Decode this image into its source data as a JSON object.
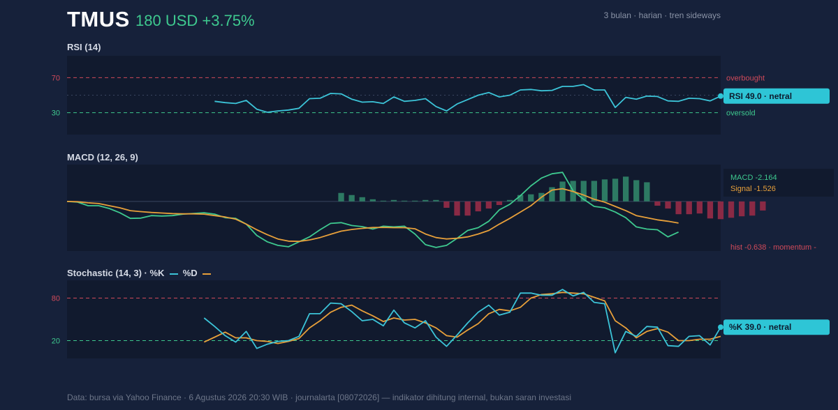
{
  "header": {
    "ticker": "TMUS",
    "price_change": "180 USD +3.75%",
    "meta": "3 bulan · harian · tren sideways"
  },
  "footer": "Data: bursa via Yahoo Finance · 6 Agustus 2026 20:30 WIB · journalarta [08072026] — indikator dihitung internal, bukan saran investasi",
  "colors": {
    "background": "#16213a",
    "panel": "#111a2e",
    "rsi_line": "#3cc4d8",
    "macd_line": "#3ec98f",
    "signal_line": "#e8a03a",
    "hist_pos": "#2d7a63",
    "hist_neg": "#8a2a45",
    "overbought": "#d04a5a",
    "oversold": "#3ec98f",
    "badge": "#2ec5d6"
  },
  "chart_data": [
    {
      "type": "line",
      "title": "RSI (14)",
      "ylim": [
        5,
        95
      ],
      "y_ticks": [
        30,
        70
      ],
      "overbought": {
        "value": 70,
        "label": "overbought"
      },
      "oversold": {
        "value": 30,
        "label": "oversold"
      },
      "midline": 50,
      "start_index": 14,
      "series": [
        {
          "values": [
            43,
            41.5,
            40.5,
            44,
            34,
            30.5,
            32,
            33,
            35,
            46,
            46.5,
            52,
            51.5,
            45.5,
            42,
            42.5,
            40.5,
            48,
            43,
            44,
            46,
            37,
            32,
            40,
            45,
            50,
            53,
            48,
            50,
            56,
            56.5,
            55,
            55.5,
            60,
            60,
            62,
            56,
            56,
            36,
            47.5,
            45.5,
            49,
            48.5,
            43.5,
            43,
            46.5,
            46,
            43.5,
            49
          ]
        }
      ],
      "badge": "RSI 49.0 · netral"
    },
    {
      "type": "line",
      "title": "MACD (12, 26, 9)",
      "ylim": [
        -3.5,
        2.6
      ],
      "zero_line": 0,
      "series": [
        {
          "name": "MACD",
          "values": [
            0.0,
            -0.05,
            -0.3,
            -0.3,
            -0.5,
            -0.8,
            -1.2,
            -1.18,
            -1.0,
            -1.03,
            -1.0,
            -0.9,
            -0.85,
            -0.8,
            -0.9,
            -1.15,
            -1.2,
            -1.6,
            -2.4,
            -2.85,
            -3.1,
            -3.2,
            -2.85,
            -2.5,
            -2.0,
            -1.55,
            -1.5,
            -1.7,
            -1.78,
            -1.95,
            -1.75,
            -1.8,
            -1.75,
            -2.3,
            -3.05,
            -3.25,
            -3.1,
            -2.6,
            -2.05,
            -1.85,
            -1.4,
            -0.6,
            -0.2,
            0.4,
            1.1,
            1.65,
            1.95,
            2.05,
            0.75,
            0.15,
            -0.35,
            -0.45,
            -0.75,
            -1.15,
            -1.8,
            -1.95,
            -2.0,
            -2.5,
            -2.164
          ]
        },
        {
          "name": "Signal",
          "values": [
            0.0,
            -0.02,
            -0.1,
            -0.15,
            -0.3,
            -0.45,
            -0.65,
            -0.72,
            -0.78,
            -0.82,
            -0.86,
            -0.88,
            -0.88,
            -0.9,
            -1.0,
            -1.1,
            -1.25,
            -1.6,
            -2.0,
            -2.35,
            -2.65,
            -2.8,
            -2.82,
            -2.72,
            -2.55,
            -2.32,
            -2.1,
            -1.98,
            -1.9,
            -1.84,
            -1.83,
            -1.85,
            -1.85,
            -1.93,
            -2.3,
            -2.55,
            -2.65,
            -2.6,
            -2.5,
            -2.3,
            -2.05,
            -1.6,
            -1.2,
            -0.75,
            -0.3,
            0.3,
            0.8,
            0.9,
            0.7,
            0.45,
            0.15,
            -0.05,
            -0.35,
            -0.65,
            -1.0,
            -1.15,
            -1.3,
            -1.4,
            -1.526
          ]
        }
      ],
      "histogram_start": 26,
      "histogram": [
        0.6,
        0.45,
        0.3,
        0.15,
        0.05,
        0.1,
        0.05,
        0.05,
        0.1,
        0.1,
        -0.45,
        -1.0,
        -1.0,
        -0.7,
        -0.5,
        -0.25,
        0.1,
        0.45,
        0.5,
        0.6,
        1.0,
        1.4,
        1.45,
        1.45,
        1.45,
        1.55,
        1.6,
        1.75,
        1.5,
        1.35,
        -0.3,
        -0.5,
        -0.9,
        -0.9,
        -0.85,
        -1.2,
        -1.25,
        -1.15,
        -1.05,
        -1.0,
        -0.638
      ],
      "labels": {
        "macd": "MACD -2.164",
        "signal": "Signal -1.526",
        "hist": "hist -0.638 · momentum -"
      }
    },
    {
      "type": "line",
      "title": "Stochastic (14, 3) · %K",
      "legend_d": "%D",
      "ylim": [
        -5,
        105
      ],
      "y_ticks": [
        20,
        80
      ],
      "overbought": {
        "value": 80
      },
      "oversold": {
        "value": 20
      },
      "start_index": 13,
      "series": [
        {
          "name": "%K",
          "values": [
            52,
            40,
            27,
            18,
            33,
            9,
            15,
            19,
            20,
            26,
            58,
            58,
            73,
            72,
            61,
            48,
            50,
            41,
            63,
            45,
            38,
            48,
            25,
            12,
            28,
            45,
            60,
            70,
            56,
            60,
            87,
            87,
            84,
            84,
            92,
            83,
            88,
            74,
            72,
            3,
            33,
            26,
            40,
            39,
            13,
            12,
            26,
            27,
            14,
            39
          ]
        },
        {
          "name": "%D",
          "values": [
            18,
            25,
            32,
            24,
            24,
            20,
            19,
            16,
            19,
            23,
            38,
            48,
            60,
            67,
            70,
            62,
            55,
            47,
            52,
            49,
            50,
            45,
            38,
            27,
            25,
            35,
            44,
            58,
            64,
            62,
            67,
            80,
            85,
            86,
            88,
            87,
            86,
            81,
            76,
            48,
            38,
            24,
            33,
            37,
            32,
            20,
            20,
            22,
            22,
            26
          ]
        }
      ],
      "badge": "%K 39.0 · netral"
    }
  ]
}
